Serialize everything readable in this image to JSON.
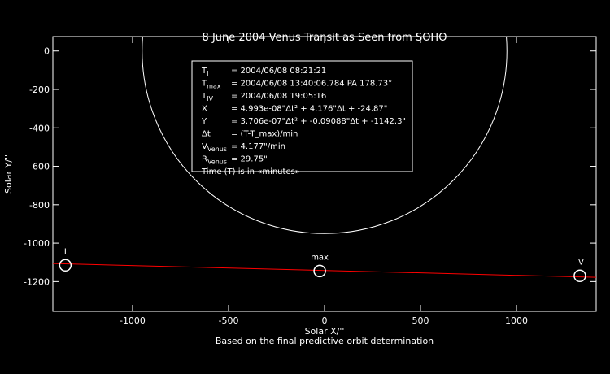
{
  "chart_data": {
    "type": "line",
    "title": "8 June 2004 Venus Transit as Seen from SOHO",
    "xlabel": "Solar X/''",
    "ylabel": "Solar Y/''",
    "subtitle": "Based on the final predictive orbit determination",
    "xlim": [
      -1415,
      1415
    ],
    "ylim": [
      -1355,
      75
    ],
    "xticks": [
      -1000,
      -500,
      0,
      500,
      1000
    ],
    "yticks": [
      0,
      -200,
      -400,
      -600,
      -800,
      -1000,
      -1200
    ],
    "series": [
      {
        "color": "#ff0000",
        "x": [
          -1415,
          1415
        ],
        "values": [
          -1106,
          -1178
        ]
      }
    ],
    "contacts": [
      {
        "label": "I",
        "x": -1350,
        "y": -1115
      },
      {
        "label": "max",
        "x": -25,
        "y": -1145
      },
      {
        "label": "IV",
        "x": 1330,
        "y": -1170
      }
    ],
    "sun": {
      "x": 0,
      "y": 0,
      "r": 950
    },
    "info": [
      {
        "symbol": "T",
        "sub": "I",
        "text": "= 2004/06/08 08:21:21"
      },
      {
        "symbol": "T",
        "sub": "max",
        "text": "= 2004/06/08 13:40:06.784 PA 178.73°"
      },
      {
        "symbol": "T",
        "sub": "IV",
        "text": "= 2004/06/08 19:05:16"
      },
      {
        "symbol": "X",
        "sub": "",
        "text": "= 4.993e-08\"Δt² + 4.176\"Δt + -24.87\""
      },
      {
        "symbol": "Y",
        "sub": "",
        "text": "= 3.706e-07\"Δt² + -0.09088\"Δt + -1142.3\""
      },
      {
        "symbol": "Δt",
        "sub": "",
        "text": "= (T-T_max)/min"
      },
      {
        "symbol": "V",
        "sub": "Venus",
        "text": "= 4.177\"/min"
      },
      {
        "symbol": "R",
        "sub": "Venus",
        "text": "= 29.75\""
      },
      {
        "symbol": "Time (T) is in «minutes»",
        "sub": "",
        "text": ""
      }
    ]
  }
}
